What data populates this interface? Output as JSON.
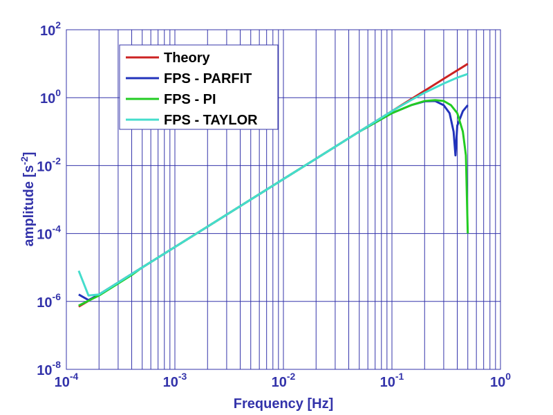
{
  "chart_data": {
    "type": "line",
    "title": "",
    "xlabel": "Frequency  [Hz]",
    "ylabel": "amplitude  [s",
    "ylabel_sup": "-2",
    "ylabel_end": "]",
    "xscale": "log",
    "yscale": "log",
    "xlim": [
      0.0001,
      1
    ],
    "ylim": [
      1e-08,
      100
    ],
    "grid": true,
    "legend_position": "top-left",
    "axis_color": "#3333aa",
    "x_ticks": [
      {
        "base": "10",
        "exp": "-4",
        "value": 0.0001
      },
      {
        "base": "10",
        "exp": "-3",
        "value": 0.001
      },
      {
        "base": "10",
        "exp": "-2",
        "value": 0.01
      },
      {
        "base": "10",
        "exp": "-1",
        "value": 0.1
      },
      {
        "base": "10",
        "exp": "0",
        "value": 1
      }
    ],
    "y_ticks": [
      {
        "base": "10",
        "exp": "-8",
        "value": 1e-08
      },
      {
        "base": "10",
        "exp": "-6",
        "value": 1e-06
      },
      {
        "base": "10",
        "exp": "-4",
        "value": 0.0001
      },
      {
        "base": "10",
        "exp": "-2",
        "value": 0.01
      },
      {
        "base": "10",
        "exp": "0",
        "value": 1
      },
      {
        "base": "10",
        "exp": "2",
        "value": 100
      }
    ],
    "series": [
      {
        "name": "Theory",
        "color": "#cc2222",
        "x": [
          0.00013,
          0.0002,
          0.0005,
          0.001,
          0.002,
          0.005,
          0.01,
          0.02,
          0.05,
          0.1,
          0.2,
          0.3,
          0.5
        ],
        "y": [
          7e-07,
          1.6e-06,
          1e-05,
          4e-05,
          0.00016,
          0.001,
          0.004,
          0.016,
          0.1,
          0.4,
          1.6,
          3.6,
          9.9
        ]
      },
      {
        "name": "FPS - PARFIT",
        "color": "#2233bb",
        "x": [
          0.00013,
          0.00016,
          0.0002,
          0.0005,
          0.001,
          0.002,
          0.005,
          0.01,
          0.02,
          0.05,
          0.1,
          0.15,
          0.2,
          0.25,
          0.3,
          0.34,
          0.37,
          0.385,
          0.4,
          0.45,
          0.5
        ],
        "y": [
          1.6e-06,
          1.1e-06,
          1.6e-06,
          1e-05,
          4e-05,
          0.00016,
          0.001,
          0.004,
          0.016,
          0.1,
          0.35,
          0.6,
          0.78,
          0.8,
          0.6,
          0.35,
          0.1,
          0.02,
          0.15,
          0.4,
          0.6
        ]
      },
      {
        "name": "FPS - PI",
        "color": "#22cc22",
        "x": [
          0.00013,
          0.0002,
          0.0004,
          0.0005,
          0.001,
          0.002,
          0.005,
          0.01,
          0.02,
          0.05,
          0.1,
          0.15,
          0.2,
          0.25,
          0.3,
          0.35,
          0.4,
          0.45,
          0.48,
          0.5
        ],
        "y": [
          7.5e-07,
          1.5e-06,
          6e-06,
          1e-05,
          4e-05,
          0.00016,
          0.001,
          0.004,
          0.016,
          0.1,
          0.35,
          0.6,
          0.8,
          0.85,
          0.8,
          0.6,
          0.35,
          0.1,
          0.02,
          0.0001
        ]
      },
      {
        "name": "FPS - TAYLOR",
        "color": "#44ddcc",
        "x": [
          0.00013,
          0.00016,
          0.0002,
          0.0005,
          0.001,
          0.002,
          0.005,
          0.01,
          0.02,
          0.05,
          0.1,
          0.15,
          0.2,
          0.3,
          0.4,
          0.5
        ],
        "y": [
          8e-06,
          1.5e-06,
          1.6e-06,
          1e-05,
          4e-05,
          0.00016,
          0.001,
          0.004,
          0.016,
          0.1,
          0.4,
          0.85,
          1.4,
          2.6,
          3.9,
          5.0
        ]
      }
    ]
  }
}
